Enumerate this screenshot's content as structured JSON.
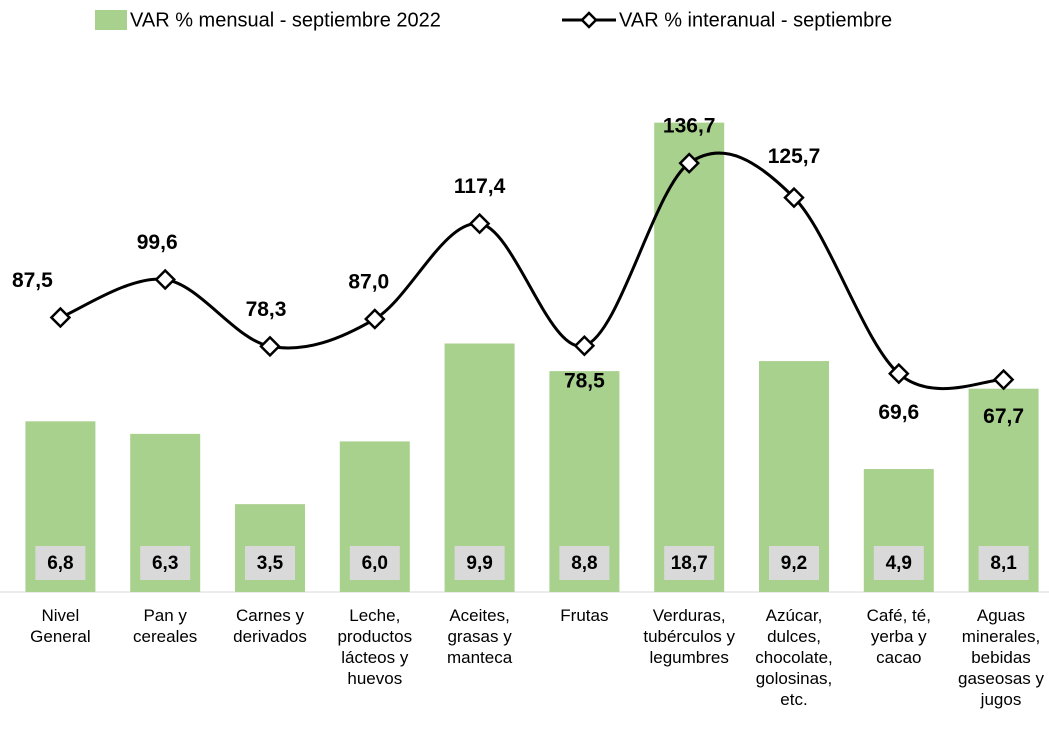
{
  "chart_data": {
    "type": "bar",
    "categories": [
      "Nivel General",
      "Pan y cereales",
      "Carnes y derivados",
      "Leche, productos lácteos y huevos",
      "Aceites, grasas y manteca",
      "Frutas",
      "Verduras, tubérculos y legumbres",
      "Azúcar, dulces, chocolate, golosinas, etc.",
      "Café, té, yerba y cacao",
      "Aguas minerales, bebidas gaseosas y jugos"
    ],
    "series": [
      {
        "name": "VAR % mensual - septiembre 2022",
        "type": "bar",
        "color": "#a9d18e",
        "values": [
          6.8,
          6.3,
          3.5,
          6.0,
          9.9,
          8.8,
          18.7,
          9.2,
          4.9,
          8.1
        ],
        "value_labels": [
          "6,8",
          "6,3",
          "3,5",
          "6,0",
          "9,9",
          "8,8",
          "18,7",
          "9,2",
          "4,9",
          "8,1"
        ]
      },
      {
        "name": "VAR % interanual - septiembre",
        "type": "line",
        "color": "#000000",
        "axis": "y2",
        "values": [
          87.5,
          99.6,
          78.3,
          87.0,
          117.4,
          78.5,
          136.7,
          125.7,
          69.6,
          67.7
        ],
        "value_labels": [
          "87,5",
          "99,6",
          "78,3",
          "87,0",
          "117,4",
          "78,5",
          "136,7",
          "125,7",
          "69,6",
          "67,7"
        ]
      }
    ],
    "ylim": [
      0,
      20
    ],
    "y2lim": [
      0,
      160
    ],
    "legend": "top"
  }
}
